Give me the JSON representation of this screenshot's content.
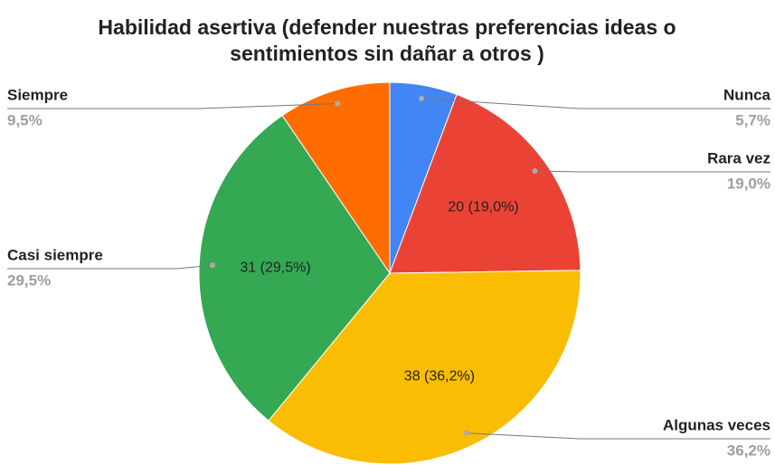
{
  "chart_data": {
    "type": "pie",
    "title": [
      "Habilidad asertiva (defender nuestras preferencias ideas o",
      "sentimientos sin dañar a otros )"
    ],
    "categories": [
      "Nunca",
      "Rara vez",
      "Algunas veces",
      "Casi siempre",
      "Siempre"
    ],
    "values": [
      6,
      20,
      38,
      31,
      10
    ],
    "value_labels": [
      null,
      "20 (19,0%)",
      "38 (36,2%)",
      "31 (29,5%)",
      null
    ],
    "percent_labels": [
      "5,7%",
      "19,0%",
      "36,2%",
      "29,5%",
      "9,5%"
    ],
    "colors": [
      "#4285f4",
      "#ea4335",
      "#fbbc04",
      "#34a853",
      "#ff6d01"
    ]
  }
}
